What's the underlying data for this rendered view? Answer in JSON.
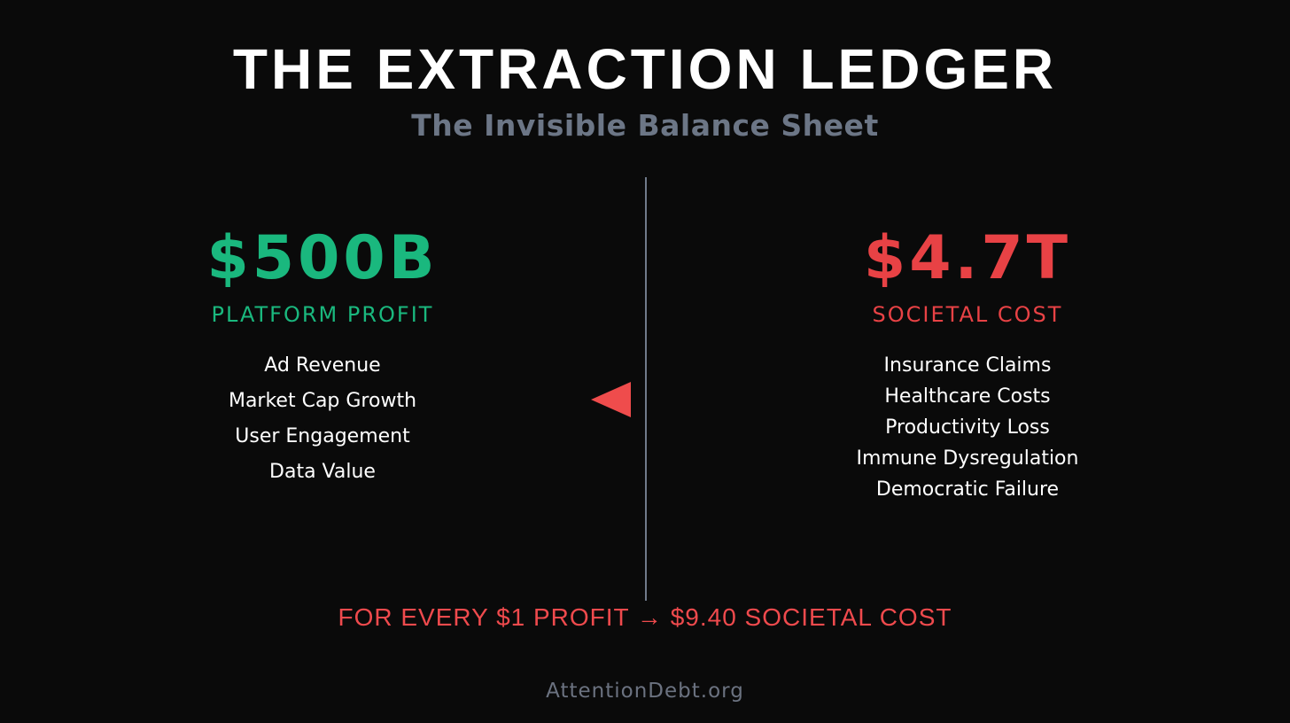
{
  "page": {
    "title": "THE EXTRACTION LEDGER",
    "subtitle": "The Invisible Balance Sheet",
    "ratio_statement": "FOR EVERY $1 PROFIT → $9.40 SOCIETAL COST",
    "footer": "AttentionDebt.org"
  },
  "ledger": {
    "profit_side": {
      "amount": "$500B",
      "label": "PLATFORM PROFIT",
      "items": [
        "Ad Revenue",
        "Market Cap Growth",
        "User Engagement",
        "Data Value"
      ]
    },
    "cost_side": {
      "amount": "$4.7T",
      "label": "SOCIETAL COST",
      "items": [
        "Insurance Claims",
        "Healthcare Costs",
        "Productivity Loss",
        "Immune Dysregulation",
        "Democratic Failure"
      ]
    }
  },
  "icons": {
    "flow_triangle": "left-pointing-triangle"
  },
  "colors": {
    "background": "#0a0a0a",
    "title_white": "#ffffff",
    "subtitle_slate": "#6c7686",
    "profit_green": "#1ab87e",
    "cost_red": "#e84245",
    "triangle_red": "#ef4c4c",
    "ratio_red": "#ef4a4d",
    "divider_gray": "#707a8a",
    "footer_gray": "#6b7280"
  }
}
